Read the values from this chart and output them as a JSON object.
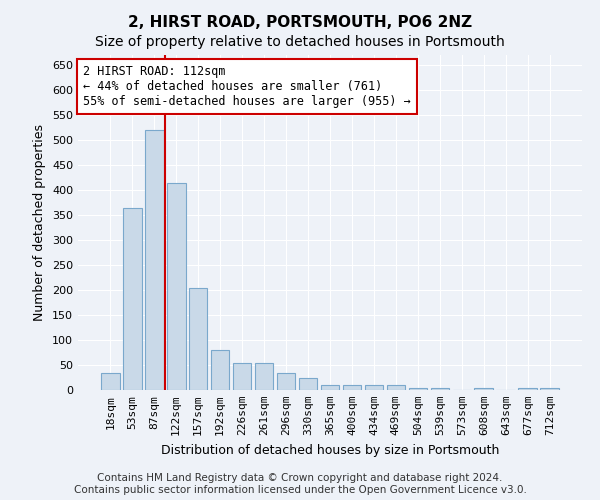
{
  "title": "2, HIRST ROAD, PORTSMOUTH, PO6 2NZ",
  "subtitle": "Size of property relative to detached houses in Portsmouth",
  "xlabel": "Distribution of detached houses by size in Portsmouth",
  "ylabel": "Number of detached properties",
  "categories": [
    "18sqm",
    "53sqm",
    "87sqm",
    "122sqm",
    "157sqm",
    "192sqm",
    "226sqm",
    "261sqm",
    "296sqm",
    "330sqm",
    "365sqm",
    "400sqm",
    "434sqm",
    "469sqm",
    "504sqm",
    "539sqm",
    "573sqm",
    "608sqm",
    "643sqm",
    "677sqm",
    "712sqm"
  ],
  "values": [
    35,
    365,
    520,
    415,
    205,
    80,
    55,
    55,
    35,
    25,
    10,
    10,
    10,
    10,
    5,
    5,
    0,
    5,
    0,
    5,
    5
  ],
  "bar_color": "#c9d9e8",
  "bar_edge_color": "#7aa8cc",
  "vline_x": 2.5,
  "vline_color": "#cc0000",
  "ylim": [
    0,
    670
  ],
  "yticks": [
    0,
    50,
    100,
    150,
    200,
    250,
    300,
    350,
    400,
    450,
    500,
    550,
    600,
    650
  ],
  "annotation_text": "2 HIRST ROAD: 112sqm\n← 44% of detached houses are smaller (761)\n55% of semi-detached houses are larger (955) →",
  "annotation_box_color": "#ffffff",
  "annotation_box_edgecolor": "#cc0000",
  "background_color": "#eef2f8",
  "footer_text": "Contains HM Land Registry data © Crown copyright and database right 2024.\nContains public sector information licensed under the Open Government Licence v3.0.",
  "title_fontsize": 11,
  "subtitle_fontsize": 10,
  "xlabel_fontsize": 9,
  "ylabel_fontsize": 9,
  "tick_fontsize": 8,
  "annotation_fontsize": 8.5,
  "footer_fontsize": 7.5
}
